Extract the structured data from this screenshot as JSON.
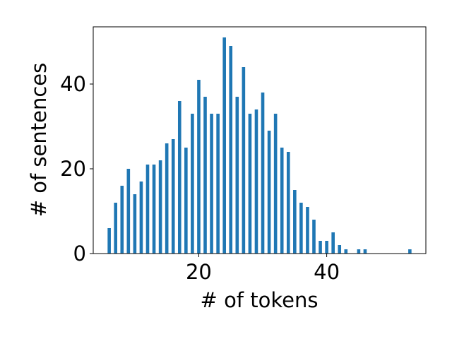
{
  "chart_data": {
    "type": "bar",
    "title": "",
    "xlabel": "# of tokens",
    "ylabel": "# of sentences",
    "xlim": [
      3.5,
      55.5
    ],
    "ylim": [
      0,
      53.5
    ],
    "xticks": [
      20,
      40
    ],
    "yticks": [
      0,
      20,
      40
    ],
    "bar_color": "#1f77b4",
    "grid": false,
    "legend": "none",
    "series": [
      {
        "x": [
          6,
          7,
          8,
          9,
          10,
          11,
          12,
          13,
          14,
          15,
          16,
          17,
          18,
          19,
          20,
          21,
          22,
          23,
          24,
          25,
          26,
          27,
          28,
          29,
          30,
          31,
          32,
          33,
          34,
          35,
          36,
          37,
          38,
          39,
          40,
          41,
          42,
          43,
          45,
          46,
          53
        ],
        "values": [
          6,
          12,
          16,
          20,
          14,
          17,
          21,
          21,
          22,
          26,
          27,
          36,
          25,
          33,
          41,
          37,
          33,
          33,
          51,
          49,
          37,
          44,
          33,
          34,
          38,
          29,
          33,
          25,
          24,
          15,
          12,
          11,
          8,
          3,
          3,
          5,
          2,
          1,
          1,
          1,
          1
        ]
      }
    ]
  }
}
